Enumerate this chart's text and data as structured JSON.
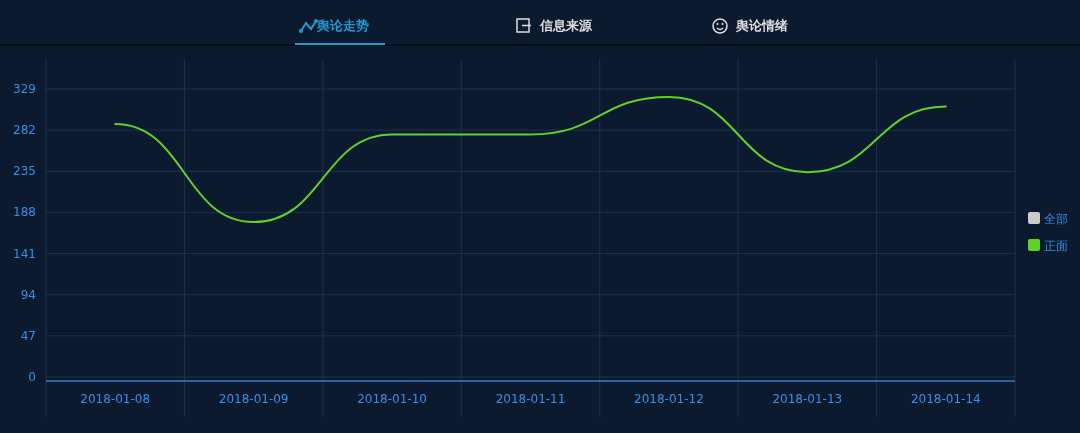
{
  "chart_data": {
    "type": "line",
    "annotations": [
      "舆论走势",
      "信息来源",
      "舆论情绪"
    ],
    "categories": [
      "2018-01-08",
      "2018-01-09",
      "2018-01-10",
      "2018-01-11",
      "2018-01-12",
      "2018-01-13",
      "2018-01-14"
    ],
    "series": [
      {
        "name": "全部",
        "color": "#cccccc",
        "values": [
          null,
          null,
          null,
          null,
          null,
          null,
          null
        ]
      },
      {
        "name": "正面",
        "color": "#5fd02c",
        "values": [
          289,
          177,
          277,
          277,
          320,
          234,
          309
        ]
      }
    ],
    "ylim": [
      0,
      329
    ],
    "yticks": [
      0,
      47,
      94,
      141,
      188,
      235,
      282,
      329
    ],
    "grid": true,
    "legend": "right",
    "marker": "none",
    "line_style": "solid"
  }
}
